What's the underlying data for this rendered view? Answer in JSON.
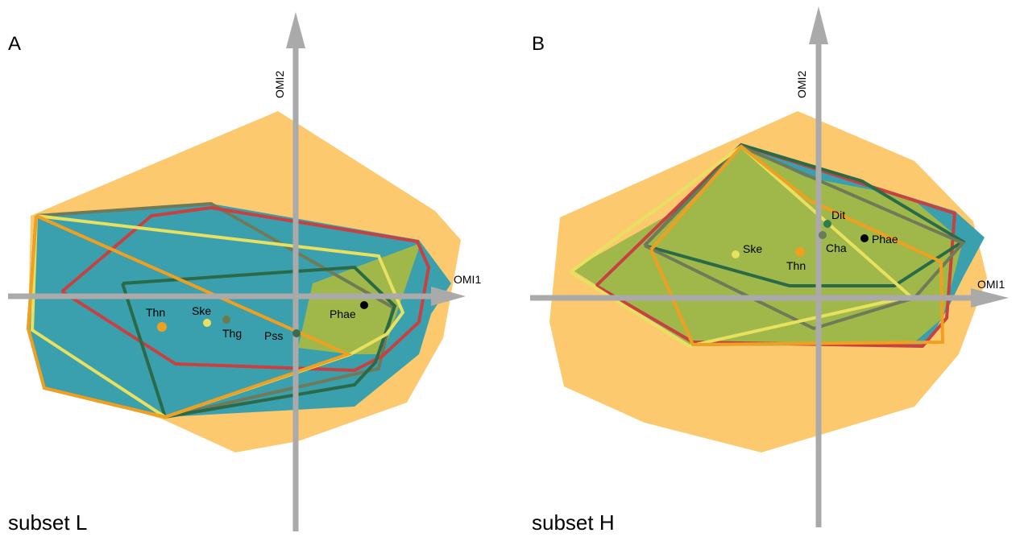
{
  "panels": [
    {
      "letter": "A",
      "subset": "subset L",
      "axis_x": "OMI1",
      "axis_y": "OMI2",
      "points": [
        {
          "label": "Thn",
          "color": "#f0a020"
        },
        {
          "label": "Ske",
          "color": "#e8e060"
        },
        {
          "label": "Thg",
          "color": "#6b7a4a"
        },
        {
          "label": "Pss",
          "color": "#3d6b4a"
        },
        {
          "label": "Phae",
          "color": "#000000"
        }
      ]
    },
    {
      "letter": "B",
      "subset": "subset H",
      "axis_x": "OMI1",
      "axis_y": "OMI2",
      "points": [
        {
          "label": "Dit",
          "color": "#2e7d4f"
        },
        {
          "label": "Cha",
          "color": "#6b7a5a"
        },
        {
          "label": "Phae",
          "color": "#000000"
        },
        {
          "label": "Ske",
          "color": "#e8e060"
        },
        {
          "label": "Thn",
          "color": "#f0a020"
        }
      ]
    }
  ],
  "colors": {
    "hull_orange_fill": "#fcc96e",
    "hull_teal_fill": "#3aa0ae",
    "hull_olive_fill": "#a0b84a",
    "red_line": "#c84040",
    "dark_green_line": "#2a6a48",
    "gray_green_line": "#707a58",
    "yellow_line": "#e8e060",
    "orange_line": "#f0a020",
    "axis": "#aaaaaa"
  }
}
